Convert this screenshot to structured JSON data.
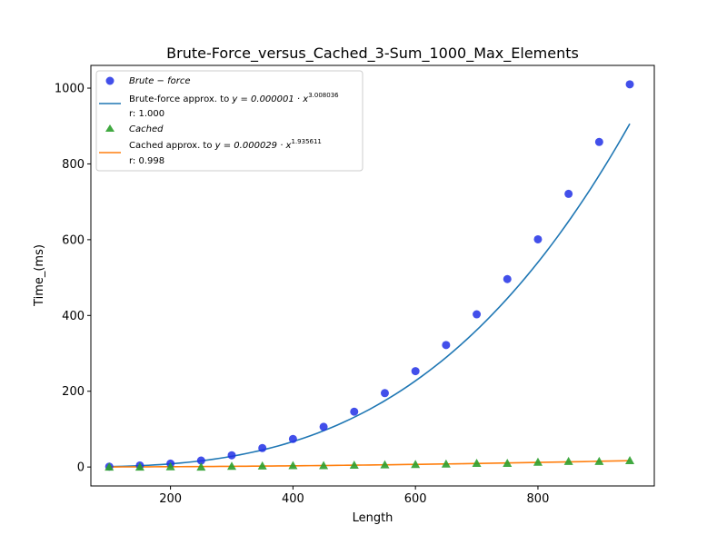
{
  "chart_data": {
    "type": "scatter",
    "title": "Brute-Force_versus_Cached_3-Sum_1000_Max_Elements",
    "xlabel": "Length",
    "ylabel": "Time_(ms)",
    "xlim": [
      70,
      990
    ],
    "ylim": [
      -50,
      1060
    ],
    "x_ticks": [
      200,
      400,
      600,
      800
    ],
    "y_ticks": [
      0,
      200,
      400,
      600,
      800,
      1000
    ],
    "x": [
      100,
      150,
      200,
      250,
      300,
      350,
      400,
      450,
      500,
      550,
      600,
      650,
      700,
      750,
      800,
      850,
      900,
      950
    ],
    "series": [
      {
        "name": "Brute − force",
        "marker": "circle",
        "color": "#2130e6",
        "values": [
          1,
          4,
          9,
          17,
          31,
          50,
          74,
          106,
          146,
          195,
          253,
          322,
          403,
          496,
          601,
          721,
          858,
          1010
        ]
      },
      {
        "name": "Cached",
        "marker": "triangle",
        "color": "#2ca02c",
        "values": [
          0,
          0,
          1,
          0,
          2,
          3,
          4,
          4,
          5,
          6,
          7,
          8,
          10,
          10,
          13,
          15,
          15,
          17
        ]
      }
    ],
    "fits": [
      {
        "label_prefix": "Brute-force approx. to ",
        "equation": "y = 0.000001 · x",
        "exponent": "3.008036",
        "r_text": "r: 1.000",
        "coef": 1e-06,
        "power": 3.008036,
        "color": "#1f77b4"
      },
      {
        "label_prefix": "Cached approx. to ",
        "equation": "y = 0.000029 · x",
        "exponent": "1.935611",
        "r_text": "r: 0.998",
        "coef": 2.9e-05,
        "power": 1.935611,
        "color": "#ff7f0e"
      }
    ],
    "legend_position": "top-left",
    "grid": false
  }
}
